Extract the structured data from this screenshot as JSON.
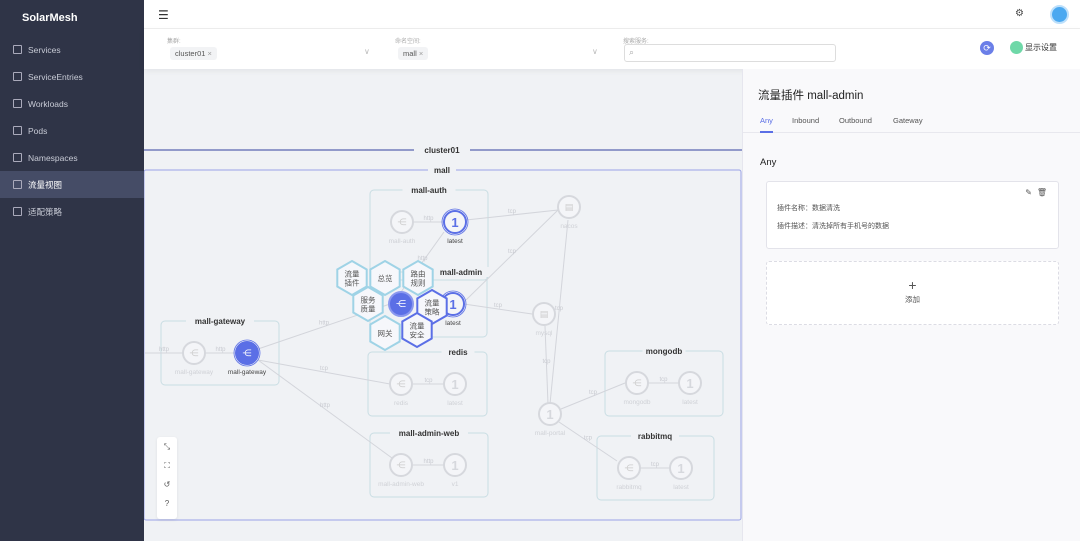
{
  "app": {
    "title": "SolarMesh"
  },
  "sidebar": {
    "items": [
      {
        "label": "Services",
        "icon": "sitemap-icon"
      },
      {
        "label": "ServiceEntries",
        "icon": "entry-icon"
      },
      {
        "label": "Workloads",
        "icon": "briefcase-icon"
      },
      {
        "label": "Pods",
        "icon": "cube-icon"
      },
      {
        "label": "Namespaces",
        "icon": "namespace-icon"
      },
      {
        "label": "流量视图",
        "icon": "bar-chart-icon",
        "active": true
      },
      {
        "label": "适配策略",
        "icon": "policy-icon"
      }
    ]
  },
  "filters": {
    "cluster_label": "集群:",
    "cluster_value": "cluster01",
    "namespace_label": "命名空间:",
    "namespace_value": "mall",
    "search_label": "搜索服务:",
    "search_value": "",
    "display_settings": "显示设置"
  },
  "graph": {
    "cluster": "cluster01",
    "namespace": "mall",
    "groups": [
      "mall-auth",
      "mall-admin",
      "mall-gateway",
      "redis",
      "mall-admin-web",
      "mongodb",
      "rabbitmq"
    ],
    "node_labels": {
      "latest": "latest",
      "v1": "v1",
      "mall_auth": "mall-auth",
      "mall_gateway": "mall-gateway",
      "redis": "redis",
      "mall_admin_web": "mall-admin-web",
      "mongodb": "mongodb",
      "rabbitmq": "rabbitmq",
      "nacos": "nacos",
      "mysql": "mysql",
      "mall_portal": "mall-portal"
    },
    "version_number": "1",
    "edge_labels": {
      "http": "http",
      "tcp": "tcp"
    },
    "hex_menu": [
      "流量\n插件",
      "总览",
      "路由\n规则",
      "服务\n质量",
      "流量\n策略",
      "网关",
      "流量\n安全"
    ]
  },
  "panel": {
    "title": "流量插件  mall-admin",
    "tabs": [
      "Any",
      "Inbound",
      "Outbound",
      "Gateway"
    ],
    "active_tab": "Any",
    "section": "Any",
    "plugin": {
      "name": "插件名称：数据清洗",
      "desc": "插件描述：清洗掉所有手机号的数据"
    },
    "add_label": "添加"
  },
  "colors": {
    "accent": "#5b6fe6",
    "sidebar": "#2f3447",
    "hex_border": "#9fd3e6"
  }
}
